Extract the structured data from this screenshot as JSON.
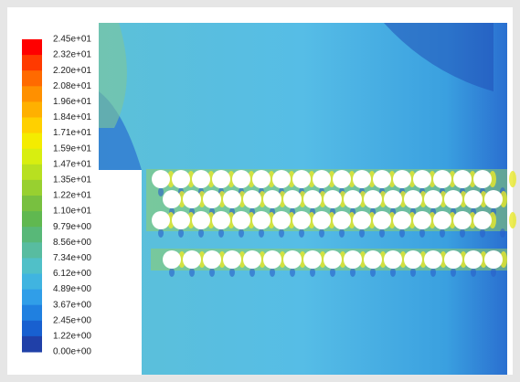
{
  "legend": {
    "labels": [
      "2.45e+01",
      "2.32e+01",
      "2.20e+01",
      "2.08e+01",
      "1.96e+01",
      "1.84e+01",
      "1.71e+01",
      "1.59e+01",
      "1.47e+01",
      "1.35e+01",
      "1.22e+01",
      "1.10e+01",
      "9.79e+00",
      "8.56e+00",
      "7.34e+00",
      "6.12e+00",
      "4.89e+00",
      "3.67e+00",
      "2.45e+00",
      "1.22e+00",
      "0.00e+00"
    ]
  }
}
